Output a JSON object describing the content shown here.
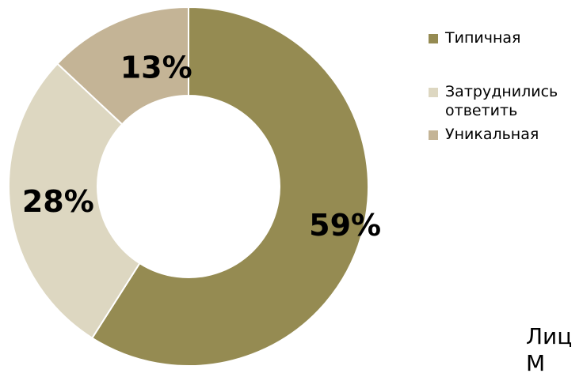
{
  "chart_data": {
    "type": "pie",
    "donut": true,
    "categories": [
      "Типичная",
      "Затруднились ответить",
      "Уникальная"
    ],
    "values": [
      59,
      28,
      13
    ],
    "data_labels": [
      "59%",
      "28%",
      "13%"
    ],
    "colors": [
      "#958b52",
      "#ddd7c1",
      "#c4b496"
    ],
    "legend": {
      "placement": "right",
      "items": [
        {
          "label": "Типичная",
          "color": "#958b52"
        },
        {
          "label": "Затруднились ответить",
          "color": "#ddd7c1"
        },
        {
          "label": "Уникальная",
          "color": "#c4b496"
        }
      ]
    }
  },
  "background_text": {
    "line1": "Лиц",
    "line2": "М"
  }
}
